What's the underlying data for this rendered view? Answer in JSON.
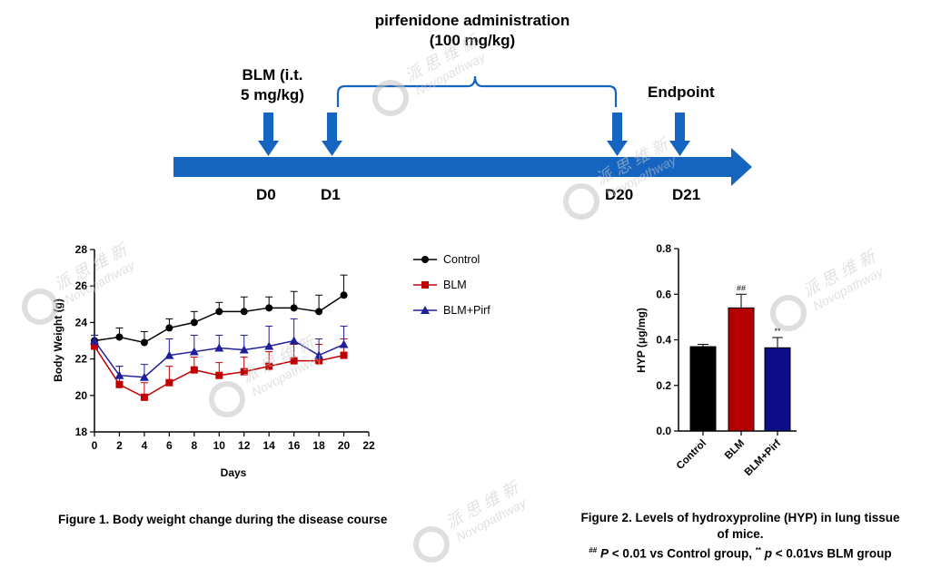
{
  "timeline": {
    "admin_label_1": "pirfenidone administration",
    "admin_label_2": "(100 mg/kg)",
    "blm_label_1": "BLM (i.t.",
    "blm_label_2": "5 mg/kg)",
    "endpoint_label": "Endpoint",
    "days": [
      "D0",
      "D1",
      "D20",
      "D21"
    ],
    "arrow_color": "#1565c0"
  },
  "watermark": {
    "cn": "派 思 维 新",
    "en": "Novopathway"
  },
  "chart_data": [
    {
      "type": "line",
      "xlabel": "Days",
      "ylabel": "Body Weight (g)",
      "xlim": [
        0,
        22
      ],
      "ylim": [
        18,
        28
      ],
      "x_ticks": [
        "0",
        "2",
        "4",
        "6",
        "8",
        "10",
        "12",
        "14",
        "16",
        "18",
        "20",
        "22"
      ],
      "y_ticks": [
        "18",
        "20",
        "22",
        "24",
        "26",
        "28"
      ],
      "x": [
        0,
        2,
        4,
        6,
        8,
        10,
        12,
        14,
        16,
        18,
        20
      ],
      "legend_position": "right",
      "series": [
        {
          "name": "Control",
          "color": "#000000",
          "marker": "circle",
          "values": [
            23.0,
            23.2,
            22.9,
            23.7,
            24.0,
            24.6,
            24.6,
            24.8,
            24.8,
            24.6,
            25.5
          ],
          "errors": [
            0.3,
            0.5,
            0.6,
            0.5,
            0.6,
            0.5,
            0.8,
            0.6,
            0.9,
            0.9,
            1.1
          ]
        },
        {
          "name": "BLM",
          "color": "#c00000",
          "marker": "square",
          "values": [
            22.7,
            20.6,
            19.9,
            20.7,
            21.4,
            21.1,
            21.3,
            21.6,
            21.9,
            21.9,
            22.2
          ],
          "errors": [
            0.6,
            1.0,
            0.8,
            0.9,
            0.7,
            0.7,
            0.8,
            0.8,
            0.9,
            0.9,
            0.9
          ]
        },
        {
          "name": "BLM+Pirf",
          "color": "#1f1f9a",
          "marker": "triangle",
          "values": [
            23.0,
            21.1,
            21.0,
            22.2,
            22.4,
            22.6,
            22.5,
            22.7,
            23.0,
            22.2,
            22.8
          ],
          "errors": [
            0.3,
            0.5,
            0.7,
            0.9,
            0.9,
            0.7,
            0.8,
            1.1,
            1.2,
            0.9,
            1.0
          ]
        }
      ],
      "caption": "Figure 1. Body weight change during the disease course"
    },
    {
      "type": "bar",
      "ylabel": "HYP (μg/mg)",
      "ylim": [
        0,
        0.8
      ],
      "y_ticks": [
        "0.0",
        "0.2",
        "0.4",
        "0.6",
        "0.8"
      ],
      "categories": [
        "Control",
        "BLM",
        "BLM+Pirf"
      ],
      "values": [
        0.37,
        0.54,
        0.365
      ],
      "errors": [
        0.01,
        0.06,
        0.045
      ],
      "colors": [
        "#000000",
        "#b30000",
        "#0d0d8a"
      ],
      "annotations": [
        "",
        "##",
        "**"
      ],
      "caption_line1": "Figure 2. Levels of hydroxyproline (HYP) in lung tissue",
      "caption_line2": "of mice.",
      "caption_sig_a": "##",
      "caption_p1": "P",
      "caption_text1": " < 0.01 vs Control group, ",
      "caption_sig_b": "**",
      "caption_p2": "p",
      "caption_text2": " < 0.01vs BLM group"
    }
  ]
}
